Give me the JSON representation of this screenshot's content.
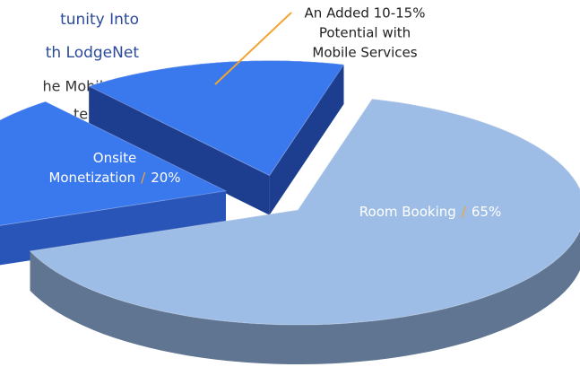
{
  "heading": [
    "tunity Into",
    "th LodgeNet"
  ],
  "body_text": [
    "he Mobile",
    "tel"
  ],
  "chart_data": {
    "type": "pie3d",
    "categories": [
      [
        "Room Booking"
      ],
      [
        "Onsite",
        "Monetization"
      ],
      [
        "An Added 10-15%",
        "Potential with",
        "Mobile Services"
      ]
    ],
    "values": [
      65,
      20,
      15
    ],
    "value_labels": [
      "65%",
      "20%",
      null
    ],
    "label_separator": "/",
    "colors": [
      "#9dbde6",
      "#3a78ee",
      "#3a78ee"
    ],
    "side_colors": [
      "#5f7592",
      "#2a55b8",
      "#1d3d8e"
    ]
  }
}
